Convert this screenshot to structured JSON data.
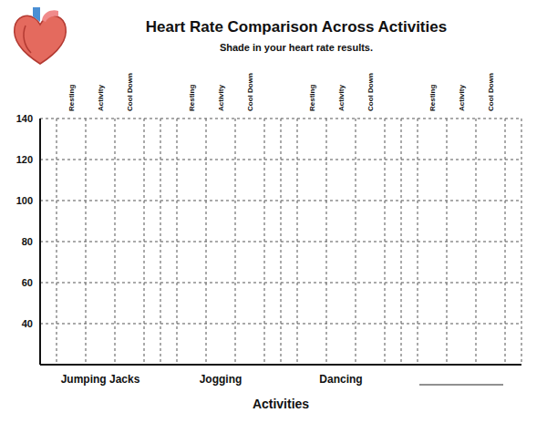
{
  "chart_data": {
    "type": "bar",
    "title": "Heart Rate Comparison Across Activities",
    "subtitle": "Shade in your heart rate results.",
    "x_label": "Activities",
    "categories": [
      "Jumping Jacks",
      "Jogging",
      "Dancing",
      null
    ],
    "series": [
      {
        "name": "Resting",
        "values": [
          null,
          null,
          null,
          null
        ]
      },
      {
        "name": "Activity",
        "values": [
          null,
          null,
          null,
          null
        ]
      },
      {
        "name": "Cool Down",
        "values": [
          null,
          null,
          null,
          null
        ]
      }
    ],
    "ylim": [
      20,
      140
    ],
    "yticks": [
      40,
      60,
      80,
      100,
      120,
      140
    ],
    "grid": true
  }
}
